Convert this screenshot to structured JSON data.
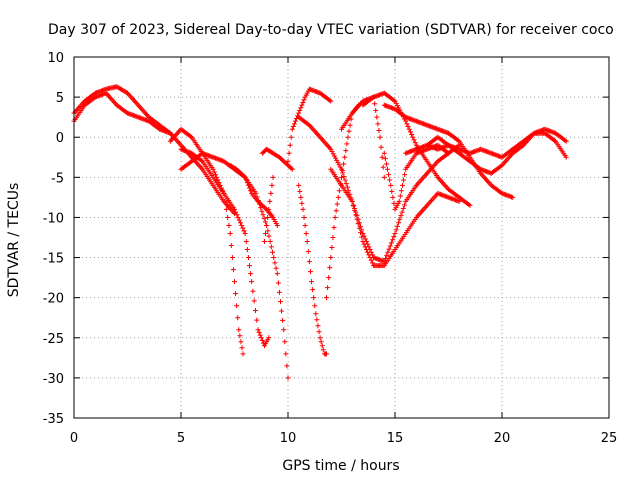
{
  "chart_data": {
    "type": "scatter",
    "title": "Day 307 of 2023, Sidereal Day-to-day VTEC variation (SDTVAR) for receiver coco",
    "xlabel": "GPS time / hours",
    "ylabel": "SDTVAR / TECUs",
    "xlim": [
      0,
      25
    ],
    "ylim": [
      -35,
      10
    ],
    "xticks": [
      0,
      5,
      10,
      15,
      20,
      25
    ],
    "yticks": [
      -35,
      -30,
      -25,
      -20,
      -15,
      -10,
      -5,
      0,
      5,
      10
    ],
    "grid": true,
    "marker": "plus",
    "color": "#ff0000",
    "series": [
      {
        "name": "track-1",
        "x": [
          0.0,
          0.5,
          1.0,
          1.5,
          2.0,
          2.5,
          3.0,
          3.5,
          4.0,
          4.5
        ],
        "y": [
          3.0,
          4.5,
          5.5,
          6.0,
          6.3,
          5.5,
          4.0,
          2.5,
          1.5,
          0.5
        ]
      },
      {
        "name": "track-2",
        "x": [
          0.0,
          0.5,
          1.0,
          1.5,
          2.0,
          2.5,
          3.0,
          3.5,
          4.0,
          4.5,
          5.0,
          5.5,
          6.0,
          6.5,
          7.0,
          7.5
        ],
        "y": [
          2.0,
          4.0,
          5.0,
          5.5,
          4.0,
          3.0,
          2.5,
          2.0,
          1.0,
          0.5,
          -1.0,
          -2.5,
          -4.0,
          -6.0,
          -8.0,
          -9.5
        ]
      },
      {
        "name": "track-3",
        "x": [
          4.5,
          5.0,
          5.5,
          6.0,
          6.5,
          7.0,
          7.3,
          7.5,
          7.7,
          7.9
        ],
        "y": [
          -0.5,
          1.0,
          0.0,
          -2.0,
          -4.0,
          -7.0,
          -12.0,
          -18.0,
          -24.0,
          -27.0
        ]
      },
      {
        "name": "track-4",
        "x": [
          5.0,
          5.5,
          6.0,
          6.5,
          7.0,
          7.5,
          8.0,
          8.3,
          8.6,
          8.9,
          9.1
        ],
        "y": [
          -1.5,
          -2.0,
          -3.0,
          -5.0,
          -7.0,
          -9.0,
          -12.0,
          -18.0,
          -24.0,
          -26.0,
          -25.0
        ]
      },
      {
        "name": "track-5",
        "x": [
          5.0,
          5.5,
          6.0,
          6.5,
          7.0,
          7.5,
          8.0,
          8.5,
          9.0,
          9.5,
          9.8,
          10.0
        ],
        "y": [
          -4.0,
          -3.0,
          -2.0,
          -2.5,
          -3.0,
          -4.0,
          -5.0,
          -7.0,
          -11.0,
          -17.0,
          -24.0,
          -30.0
        ]
      },
      {
        "name": "track-6",
        "x": [
          7.3,
          7.6,
          8.0,
          8.3,
          8.6,
          9.0,
          9.3,
          9.5
        ],
        "y": [
          -3.5,
          -4.0,
          -5.0,
          -7.0,
          -8.0,
          -9.0,
          -10.0,
          -11.0
        ]
      },
      {
        "name": "track-7",
        "x": [
          8.8,
          9.0,
          9.3,
          9.6,
          9.8,
          10.0,
          10.2
        ],
        "y": [
          -2.0,
          -1.5,
          -2.0,
          -2.5,
          -3.0,
          -3.5,
          -4.0
        ]
      },
      {
        "name": "track-8",
        "x": [
          8.9,
          9.1,
          9.3
        ],
        "y": [
          -13.0,
          -9.0,
          -5.0
        ]
      },
      {
        "name": "track-9",
        "x": [
          10.0,
          10.2,
          10.5,
          10.8,
          11.0,
          11.5,
          12.0
        ],
        "y": [
          -3.0,
          1.0,
          3.0,
          5.0,
          6.0,
          5.5,
          4.5
        ]
      },
      {
        "name": "track-10",
        "x": [
          10.5,
          10.7,
          10.9,
          11.1,
          11.3,
          11.5,
          11.7,
          11.8
        ],
        "y": [
          -6.0,
          -9.0,
          -13.0,
          -18.0,
          -22.0,
          -25.0,
          -27.0,
          -27.0
        ]
      },
      {
        "name": "track-11",
        "x": [
          10.5,
          11.0,
          11.5,
          12.0,
          12.5,
          13.0,
          13.5,
          14.0,
          14.5,
          15.0,
          16.0,
          17.0,
          18.0
        ],
        "y": [
          2.5,
          1.5,
          0.0,
          -1.5,
          -4.0,
          -8.0,
          -13.0,
          -16.0,
          -16.0,
          -14.0,
          -10.0,
          -7.0,
          -8.0
        ]
      },
      {
        "name": "track-12",
        "x": [
          11.8,
          12.0,
          12.2,
          12.5,
          12.8,
          13.0,
          13.3
        ],
        "y": [
          -20.0,
          -15.0,
          -10.0,
          -5.0,
          0.0,
          3.0,
          4.0
        ]
      },
      {
        "name": "track-13",
        "x": [
          12.5,
          13.0,
          13.5,
          14.0,
          14.3,
          14.5
        ],
        "y": [
          1.0,
          3.0,
          4.5,
          5.0,
          0.0,
          -5.0
        ]
      },
      {
        "name": "track-14",
        "x": [
          12.0,
          12.5,
          13.0,
          13.5,
          14.0,
          14.5,
          15.0,
          15.5,
          16.0,
          17.0,
          18.0
        ],
        "y": [
          -4.0,
          -6.0,
          -8.0,
          -12.0,
          -15.0,
          -15.5,
          -12.0,
          -8.0,
          -6.0,
          -3.0,
          -1.0
        ]
      },
      {
        "name": "track-15",
        "x": [
          13.5,
          14.0,
          14.5,
          15.0,
          15.5,
          16.0,
          16.5,
          17.0,
          17.5,
          18.0,
          18.5
        ],
        "y": [
          4.0,
          5.0,
          5.5,
          4.5,
          2.0,
          -1.0,
          -3.0,
          -5.0,
          -6.5,
          -7.5,
          -8.5
        ]
      },
      {
        "name": "track-16",
        "x": [
          14.5,
          15.0,
          15.5,
          16.0,
          16.5,
          17.0,
          17.5,
          18.0,
          18.5,
          19.0,
          19.5,
          20.0,
          20.5
        ],
        "y": [
          4.0,
          3.5,
          2.5,
          2.0,
          1.5,
          1.0,
          0.5,
          -0.5,
          -2.5,
          -4.5,
          -6.0,
          -7.0,
          -7.5
        ]
      },
      {
        "name": "track-17",
        "x": [
          14.5,
          14.8,
          15.0,
          15.2,
          15.5,
          16.0,
          16.5,
          17.0,
          17.5
        ],
        "y": [
          -2.0,
          -6.0,
          -9.0,
          -8.0,
          -4.0,
          -2.0,
          -1.5,
          -1.0,
          -2.0
        ]
      },
      {
        "name": "track-18",
        "x": [
          15.5,
          16.0,
          16.5,
          17.0,
          17.5,
          18.0,
          18.5,
          19.0,
          19.5,
          20.0,
          20.5,
          21.0,
          21.5,
          22.0,
          22.5,
          23.0
        ],
        "y": [
          -2.0,
          -1.5,
          -1.0,
          0.0,
          -1.0,
          -2.0,
          -3.0,
          -4.0,
          -4.5,
          -3.5,
          -2.0,
          -1.0,
          0.5,
          1.0,
          0.5,
          -0.5
        ]
      },
      {
        "name": "track-19",
        "x": [
          16.5,
          17.0,
          17.5,
          18.0,
          18.5,
          19.0,
          19.5,
          20.0,
          20.5,
          21.0,
          21.5,
          22.0,
          22.5,
          23.0
        ],
        "y": [
          -1.0,
          -1.5,
          -1.0,
          -1.5,
          -2.0,
          -1.5,
          -2.0,
          -2.5,
          -1.5,
          -0.5,
          0.5,
          0.5,
          -0.5,
          -2.5
        ]
      }
    ]
  }
}
